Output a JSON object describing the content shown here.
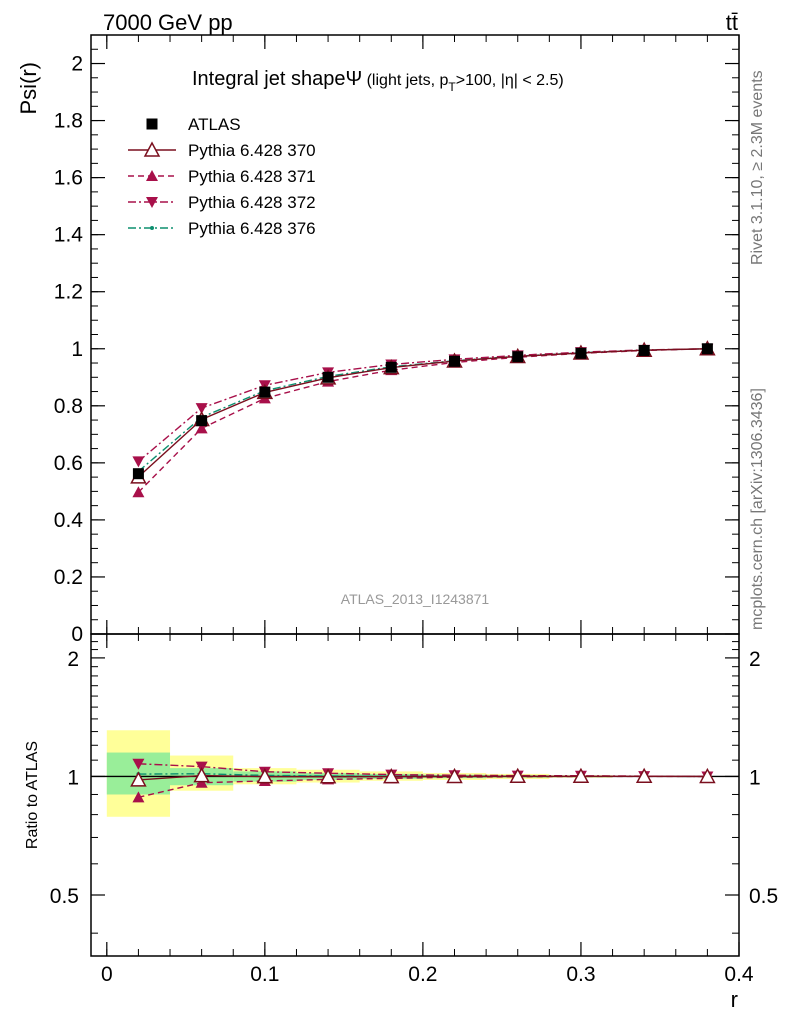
{
  "header": {
    "energy_label": "7000 GeV pp",
    "process_label": "tt̄"
  },
  "side_labels": {
    "rivet": "Rivet 3.1.10, ≥ 2.3M events",
    "mcplots": "mcplots.cern.ch [arXiv:1306.3436]"
  },
  "chart_data": [
    {
      "type": "line",
      "panel": "main",
      "title_main": "Integral jet shape",
      "title_symbol": "Ψ",
      "title_detail_pre": " (light jets, p",
      "title_detail_sub": "T",
      "title_detail_post": ">100, |η| < 2.5)",
      "watermark": "ATLAS_2013_I1243871",
      "xlabel": "r",
      "ylabel": "Psi(r)",
      "xlim": [
        -0.01,
        0.4
      ],
      "ylim": [
        0,
        2.1
      ],
      "x_ticks": [
        "0",
        "0.1",
        "0.2",
        "0.3",
        "0.4"
      ],
      "y_ticks": [
        "0",
        "0.2",
        "0.4",
        "0.6",
        "0.8",
        "1",
        "1.2",
        "1.4",
        "1.6",
        "1.8",
        "2"
      ],
      "x": [
        0.02,
        0.06,
        0.1,
        0.14,
        0.18,
        0.22,
        0.26,
        0.3,
        0.34,
        0.38
      ],
      "legend_position": "top-left",
      "series": [
        {
          "name": "ATLAS",
          "color": "#000000",
          "marker": "square",
          "dash": "none",
          "values": [
            0.562,
            0.748,
            0.848,
            0.9,
            0.935,
            0.956,
            0.972,
            0.984,
            0.994,
            1.0
          ]
        },
        {
          "name": "Pythia 6.428 370",
          "color": "#7a0f1e",
          "marker": "triangle-open",
          "dash": "solid",
          "values": [
            0.551,
            0.752,
            0.847,
            0.898,
            0.934,
            0.957,
            0.973,
            0.985,
            0.995,
            1.0
          ]
        },
        {
          "name": "Pythia 6.428 371",
          "color": "#a8104a",
          "marker": "triangle-up",
          "dash": "6,4",
          "values": [
            0.497,
            0.721,
            0.826,
            0.885,
            0.925,
            0.952,
            0.97,
            0.984,
            0.994,
            1.0
          ]
        },
        {
          "name": "Pythia 6.428 372",
          "color": "#a8104a",
          "marker": "triangle-down",
          "dash": "8,3,2,3",
          "values": [
            0.605,
            0.792,
            0.872,
            0.917,
            0.945,
            0.963,
            0.977,
            0.988,
            0.996,
            1.0
          ]
        },
        {
          "name": "Pythia 6.428 376",
          "color": "#0d8f6f",
          "marker": "dot",
          "dash": "8,3,2,3",
          "values": [
            0.57,
            0.76,
            0.853,
            0.903,
            0.937,
            0.958,
            0.974,
            0.986,
            0.995,
            1.0
          ]
        }
      ]
    },
    {
      "type": "line",
      "panel": "ratio",
      "xlabel": "r",
      "ylabel": "Ratio to ATLAS",
      "xlim": [
        -0.01,
        0.4
      ],
      "ylim": [
        0.35,
        2.3
      ],
      "y_scale": "log",
      "x_ticks": [
        "0",
        "0.1",
        "0.2",
        "0.3",
        "0.4"
      ],
      "y_ticks": [
        "0.5",
        "1",
        "2"
      ],
      "x": [
        0.02,
        0.06,
        0.1,
        0.14,
        0.18,
        0.22,
        0.26,
        0.3,
        0.34,
        0.38
      ],
      "bins": [
        [
          0.0,
          0.04
        ],
        [
          0.04,
          0.08
        ],
        [
          0.08,
          0.12
        ],
        [
          0.12,
          0.16
        ],
        [
          0.16,
          0.2
        ],
        [
          0.2,
          0.24
        ],
        [
          0.24,
          0.28
        ],
        [
          0.28,
          0.32
        ],
        [
          0.32,
          0.36
        ],
        [
          0.36,
          0.4
        ]
      ],
      "band_stat": [
        [
          0.9,
          1.15
        ],
        [
          0.95,
          1.05
        ],
        [
          0.97,
          1.03
        ],
        [
          0.98,
          1.02
        ],
        [
          0.985,
          1.015
        ],
        [
          0.99,
          1.01
        ],
        [
          0.993,
          1.007
        ],
        [
          0.996,
          1.004
        ],
        [
          0.998,
          1.002
        ],
        [
          0.999,
          1.001
        ]
      ],
      "band_total": [
        [
          0.79,
          1.31
        ],
        [
          0.92,
          1.13
        ],
        [
          0.955,
          1.05
        ],
        [
          0.965,
          1.04
        ],
        [
          0.975,
          1.03
        ],
        [
          0.98,
          1.02
        ],
        [
          0.985,
          1.015
        ],
        [
          0.993,
          1.007
        ],
        [
          0.997,
          1.003
        ],
        [
          0.999,
          1.001
        ]
      ],
      "band_stat_color": "#99ee99",
      "band_total_color": "#ffff99",
      "series": [
        {
          "name": "Pythia 6.428 370",
          "color": "#7a0f1e",
          "marker": "triangle-open",
          "dash": "solid",
          "values": [
            0.98,
            1.005,
            0.999,
            0.998,
            0.999,
            1.0,
            1.001,
            1.001,
            1.001,
            1.0
          ]
        },
        {
          "name": "Pythia 6.428 371",
          "color": "#a8104a",
          "marker": "triangle-up",
          "dash": "6,4",
          "values": [
            0.885,
            0.964,
            0.974,
            0.983,
            0.989,
            0.996,
            0.998,
            1.0,
            1.0,
            1.0
          ]
        },
        {
          "name": "Pythia 6.428 372",
          "color": "#a8104a",
          "marker": "triangle-down",
          "dash": "8,3,2,3",
          "values": [
            1.077,
            1.059,
            1.028,
            1.019,
            1.011,
            1.007,
            1.005,
            1.004,
            1.002,
            1.0
          ]
        },
        {
          "name": "Pythia 6.428 376",
          "color": "#0d8f6f",
          "marker": "dot",
          "dash": "8,3,2,3",
          "values": [
            1.014,
            1.016,
            1.006,
            1.003,
            1.002,
            1.002,
            1.002,
            1.002,
            1.001,
            1.0
          ]
        }
      ]
    }
  ]
}
